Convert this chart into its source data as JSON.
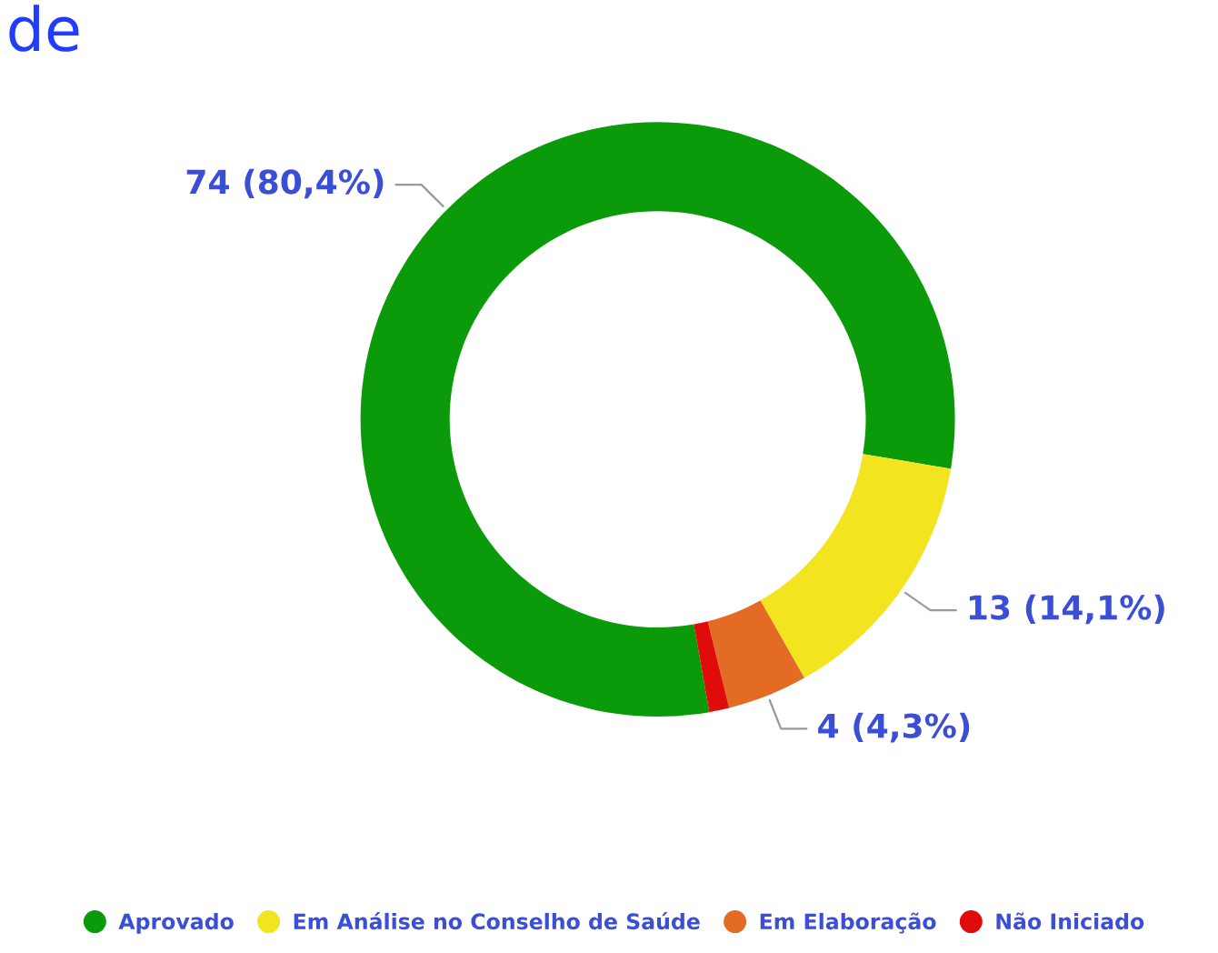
{
  "chart_data": {
    "type": "donut",
    "title": "de",
    "categories": [
      "Aprovado",
      "Em Análise no Conselho de Saúde",
      "Em Elaboração",
      "Não Iniciado"
    ],
    "values": [
      74,
      13,
      4,
      1
    ],
    "colors": [
      "#0a9a0a",
      "#f2e41e",
      "#e36b24",
      "#e00b0b"
    ],
    "value_labels": [
      "74 (80,4%)",
      "13 (14,1%)",
      "4 (4,3%)",
      null
    ],
    "legend": "bottom"
  }
}
